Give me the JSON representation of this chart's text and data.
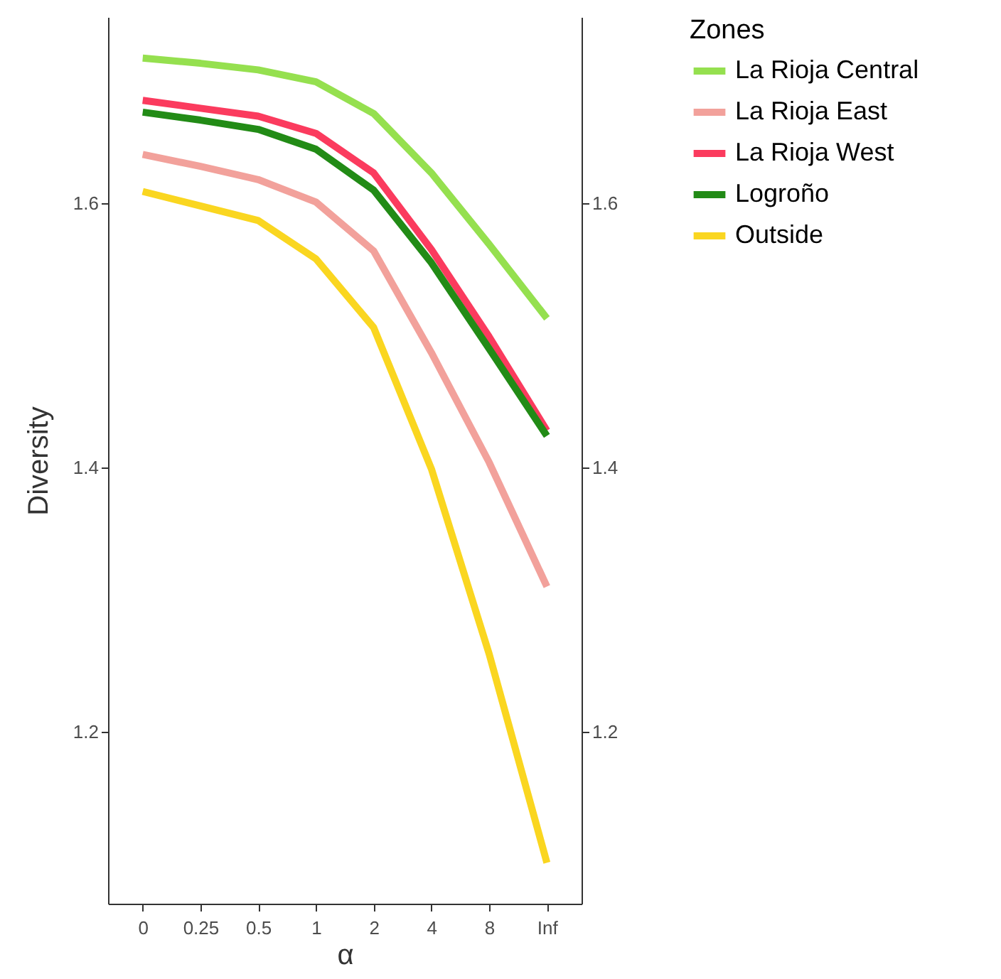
{
  "chart_data": {
    "type": "line",
    "xlabel": "α",
    "ylabel": "Diversity",
    "legend_title": "Zones",
    "legend": "right",
    "categories": [
      "0",
      "0.25",
      "0.5",
      "1",
      "2",
      "4",
      "8",
      "Inf"
    ],
    "series": [
      {
        "name": "La Rioja Central",
        "color": "#95e04f",
        "values": [
          1.71,
          1.706,
          1.701,
          1.692,
          1.668,
          1.623,
          1.569,
          1.513
        ]
      },
      {
        "name": "La Rioja East",
        "color": "#f2a19b",
        "values": [
          1.637,
          1.628,
          1.618,
          1.601,
          1.564,
          1.487,
          1.404,
          1.31
        ]
      },
      {
        "name": "La Rioja West",
        "color": "#fb3b5e",
        "values": [
          1.678,
          1.672,
          1.666,
          1.653,
          1.623,
          1.565,
          1.499,
          1.428
        ]
      },
      {
        "name": "Logroño",
        "color": "#228b16",
        "values": [
          1.669,
          1.663,
          1.656,
          1.641,
          1.61,
          1.555,
          1.49,
          1.424
        ]
      },
      {
        "name": "Outside",
        "color": "#fad620",
        "values": [
          1.609,
          1.598,
          1.587,
          1.558,
          1.506,
          1.399,
          1.259,
          1.101
        ]
      }
    ],
    "ylim": [
      1.07,
      1.741
    ],
    "yticks": [
      1.2,
      1.4,
      1.6
    ],
    "y2lim": [
      1.07,
      1.741
    ],
    "y2ticks": [
      1.2,
      1.4,
      1.6
    ]
  }
}
